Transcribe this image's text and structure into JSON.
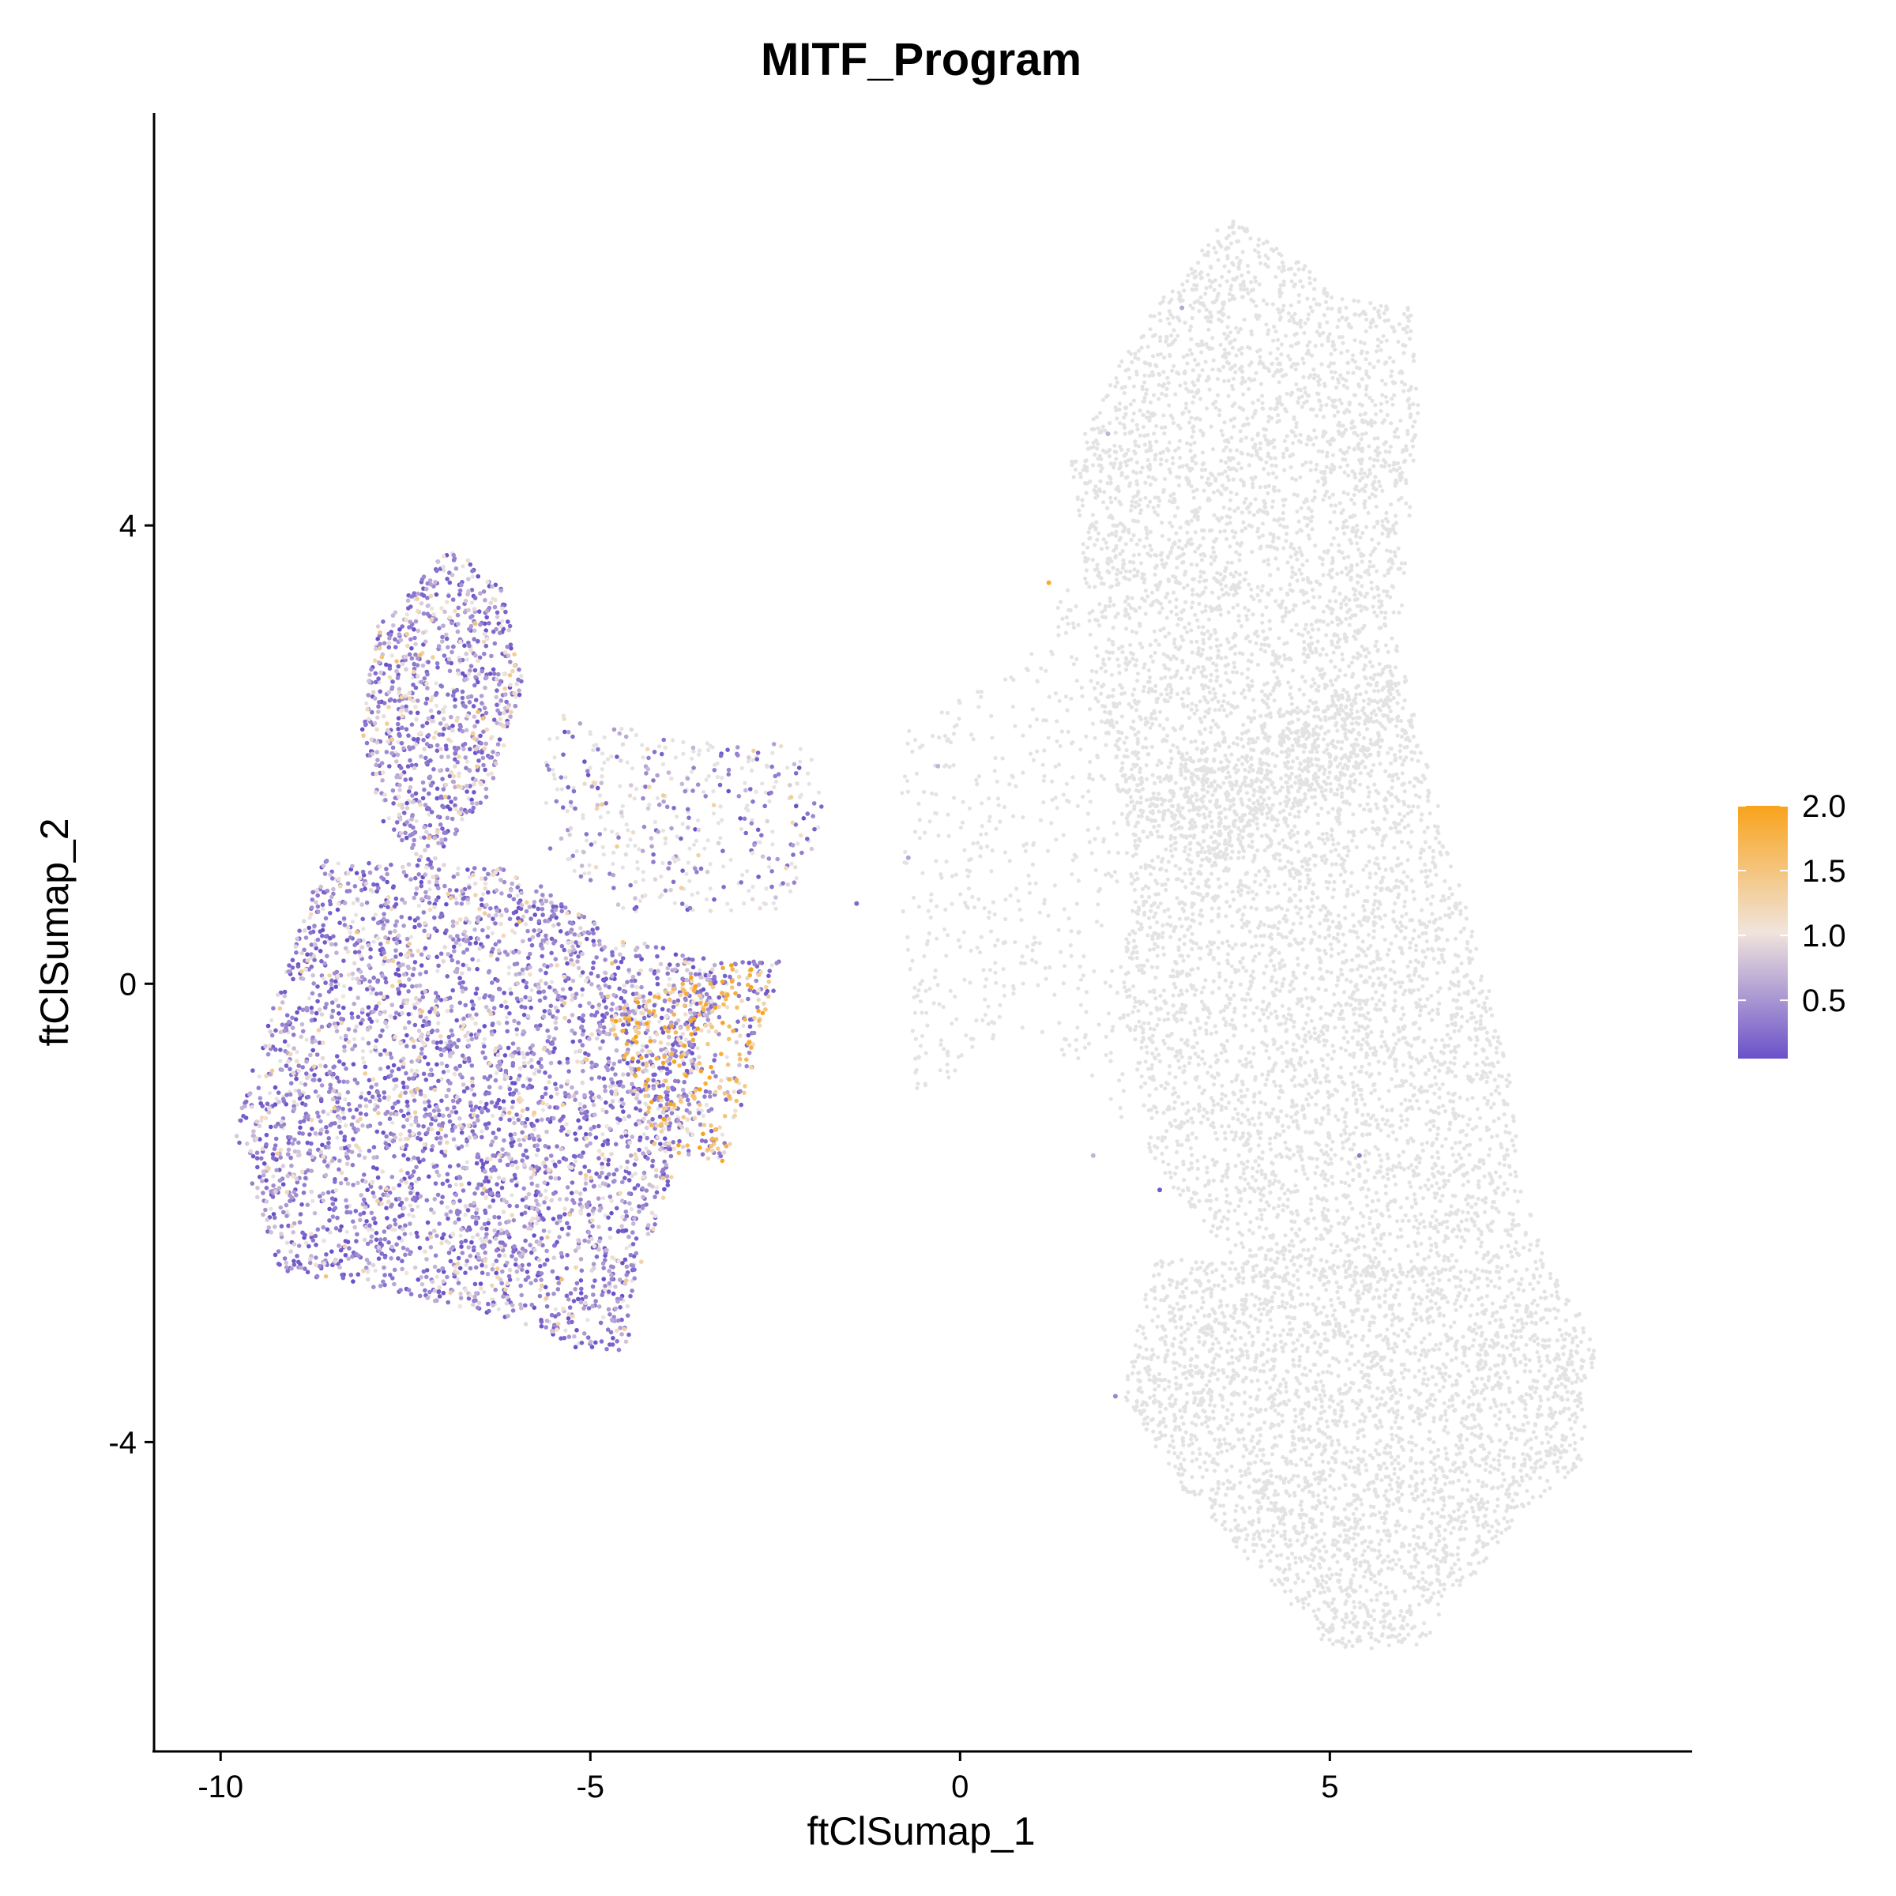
{
  "chart_data": {
    "type": "scatter",
    "title": "MITF_Program",
    "xlabel": "ftClSumap_1",
    "ylabel": "ftClSumap_2",
    "xlim": [
      -10.9,
      9.9
    ],
    "ylim": [
      -6.7,
      7.6
    ],
    "x_ticks": [
      -10,
      -5,
      0,
      5
    ],
    "x_tick_labels": [
      "-10",
      "-5",
      "0",
      "5"
    ],
    "y_ticks": [
      -4,
      0,
      4
    ],
    "y_tick_labels": [
      "-4",
      "0",
      "4"
    ],
    "grid": false,
    "legend_position": "right",
    "colorbar": {
      "min": 0.05,
      "max": 2.0,
      "ticks": [
        0.5,
        1.0,
        1.5,
        2.0
      ],
      "tick_labels": [
        "0.5",
        "1.0",
        "1.5",
        "2.0"
      ],
      "low_color": "#6A51C9",
      "mid_color": "#F0E4DC",
      "high_color": "#F9A31B",
      "na_color": "#E3E3E3"
    },
    "clusters": [
      {
        "region": "expressing-upper-arm",
        "n": 900,
        "polygon": [
          [
            -7.9,
            3.1
          ],
          [
            -6.9,
            3.8
          ],
          [
            -6.2,
            3.5
          ],
          [
            -5.9,
            2.6
          ],
          [
            -6.4,
            1.6
          ],
          [
            -7.2,
            1.0
          ],
          [
            -7.8,
            1.4
          ],
          [
            -8.1,
            2.2
          ]
        ],
        "expression_bias": 0.65
      },
      {
        "region": "expressing-main-body",
        "n": 3800,
        "polygon": [
          [
            -8.6,
            1.1
          ],
          [
            -6.0,
            1.0
          ],
          [
            -4.6,
            0.4
          ],
          [
            -3.2,
            0.2
          ],
          [
            -3.8,
            -1.5
          ],
          [
            -4.4,
            -2.6
          ],
          [
            -4.5,
            -3.2
          ],
          [
            -5.1,
            -3.2
          ],
          [
            -6.2,
            -2.9
          ],
          [
            -7.6,
            -2.7
          ],
          [
            -9.2,
            -2.5
          ],
          [
            -9.8,
            -1.3
          ],
          [
            -9.6,
            -0.8
          ]
        ],
        "expression_bias": 0.55
      },
      {
        "region": "expressing-orange-core",
        "n": 500,
        "polygon": [
          [
            -4.8,
            -0.2
          ],
          [
            -3.0,
            0.2
          ],
          [
            -2.4,
            0.2
          ],
          [
            -3.2,
            -1.6
          ],
          [
            -4.2,
            -1.4
          ]
        ],
        "expression_bias": 1.55
      },
      {
        "region": "mixed-bridge",
        "n": 420,
        "polygon": [
          [
            -5.6,
            2.4
          ],
          [
            -3.6,
            2.1
          ],
          [
            -2.0,
            2.1
          ],
          [
            -1.8,
            1.3
          ],
          [
            -2.5,
            0.6
          ],
          [
            -4.6,
            0.6
          ],
          [
            -5.6,
            1.2
          ]
        ],
        "expression_bias": 0.75,
        "gray_fraction": 0.45
      },
      {
        "region": "gray-connector",
        "n": 520,
        "polygon": [
          [
            -0.8,
            2.2
          ],
          [
            0.8,
            2.8
          ],
          [
            1.5,
            3.5
          ],
          [
            2.3,
            2.2
          ],
          [
            2.6,
            0.6
          ],
          [
            2.2,
            -1.2
          ],
          [
            1.0,
            -0.4
          ],
          [
            -0.6,
            -1.0
          ],
          [
            -0.8,
            0.6
          ]
        ],
        "gray_fraction": 1.0
      },
      {
        "region": "gray-upper-right",
        "n": 3400,
        "polygon": [
          [
            1.5,
            4.6
          ],
          [
            2.4,
            5.7
          ],
          [
            3.6,
            6.7
          ],
          [
            4.6,
            6.3
          ],
          [
            5.2,
            6.0
          ],
          [
            6.1,
            5.9
          ],
          [
            6.2,
            5.0
          ],
          [
            6.0,
            3.5
          ],
          [
            5.8,
            2.0
          ],
          [
            3.5,
            1.0
          ],
          [
            2.2,
            1.4
          ],
          [
            1.8,
            2.8
          ],
          [
            1.6,
            4.0
          ]
        ],
        "gray_fraction": 1.0
      },
      {
        "region": "gray-middle",
        "n": 3600,
        "polygon": [
          [
            2.4,
            1.8
          ],
          [
            6.0,
            2.8
          ],
          [
            6.6,
            1.2
          ],
          [
            7.4,
            -0.6
          ],
          [
            7.6,
            -1.8
          ],
          [
            8.0,
            -2.5
          ],
          [
            4.0,
            -2.6
          ],
          [
            2.6,
            -1.6
          ],
          [
            2.2,
            0.0
          ]
        ],
        "gray_fraction": 1.0
      },
      {
        "region": "gray-lower",
        "n": 3200,
        "polygon": [
          [
            2.6,
            -2.4
          ],
          [
            8.0,
            -2.5
          ],
          [
            8.6,
            -3.1
          ],
          [
            8.4,
            -4.2
          ],
          [
            7.6,
            -4.6
          ],
          [
            6.2,
            -5.8
          ],
          [
            5.0,
            -5.8
          ],
          [
            3.0,
            -4.4
          ],
          [
            2.2,
            -3.6
          ]
        ],
        "gray_fraction": 1.0
      }
    ],
    "outliers": [
      {
        "x": 1.2,
        "y": 3.5,
        "value": 1.9
      },
      {
        "x": -0.3,
        "y": 1.9,
        "value": 0.7
      },
      {
        "x": -0.7,
        "y": 1.1,
        "value": 0.6
      },
      {
        "x": 1.8,
        "y": -1.5,
        "value": 0.7
      },
      {
        "x": 2.7,
        "y": -1.8,
        "value": 0.1
      },
      {
        "x": 5.4,
        "y": -1.5,
        "value": 0.3
      },
      {
        "x": 2.1,
        "y": -3.6,
        "value": 0.4
      },
      {
        "x": 3.0,
        "y": 5.9,
        "value": 0.6
      },
      {
        "x": 2.0,
        "y": 4.8,
        "value": 0.7
      },
      {
        "x": -1.4,
        "y": 0.7,
        "value": 0.2
      }
    ]
  }
}
